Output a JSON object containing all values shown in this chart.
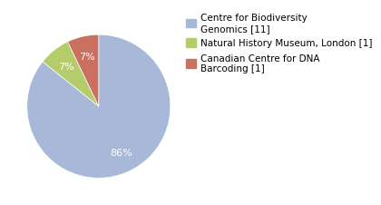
{
  "labels": [
    "Centre for Biodiversity\nGenomics [11]",
    "Natural History Museum, London [1]",
    "Canadian Centre for DNA\nBarcoding [1]"
  ],
  "values": [
    84,
    7,
    7
  ],
  "colors": [
    "#a8b8d8",
    "#b5cc6a",
    "#c97060"
  ],
  "background_color": "#ffffff",
  "fontsize": 7.5,
  "pct_fontsize": 8.0
}
